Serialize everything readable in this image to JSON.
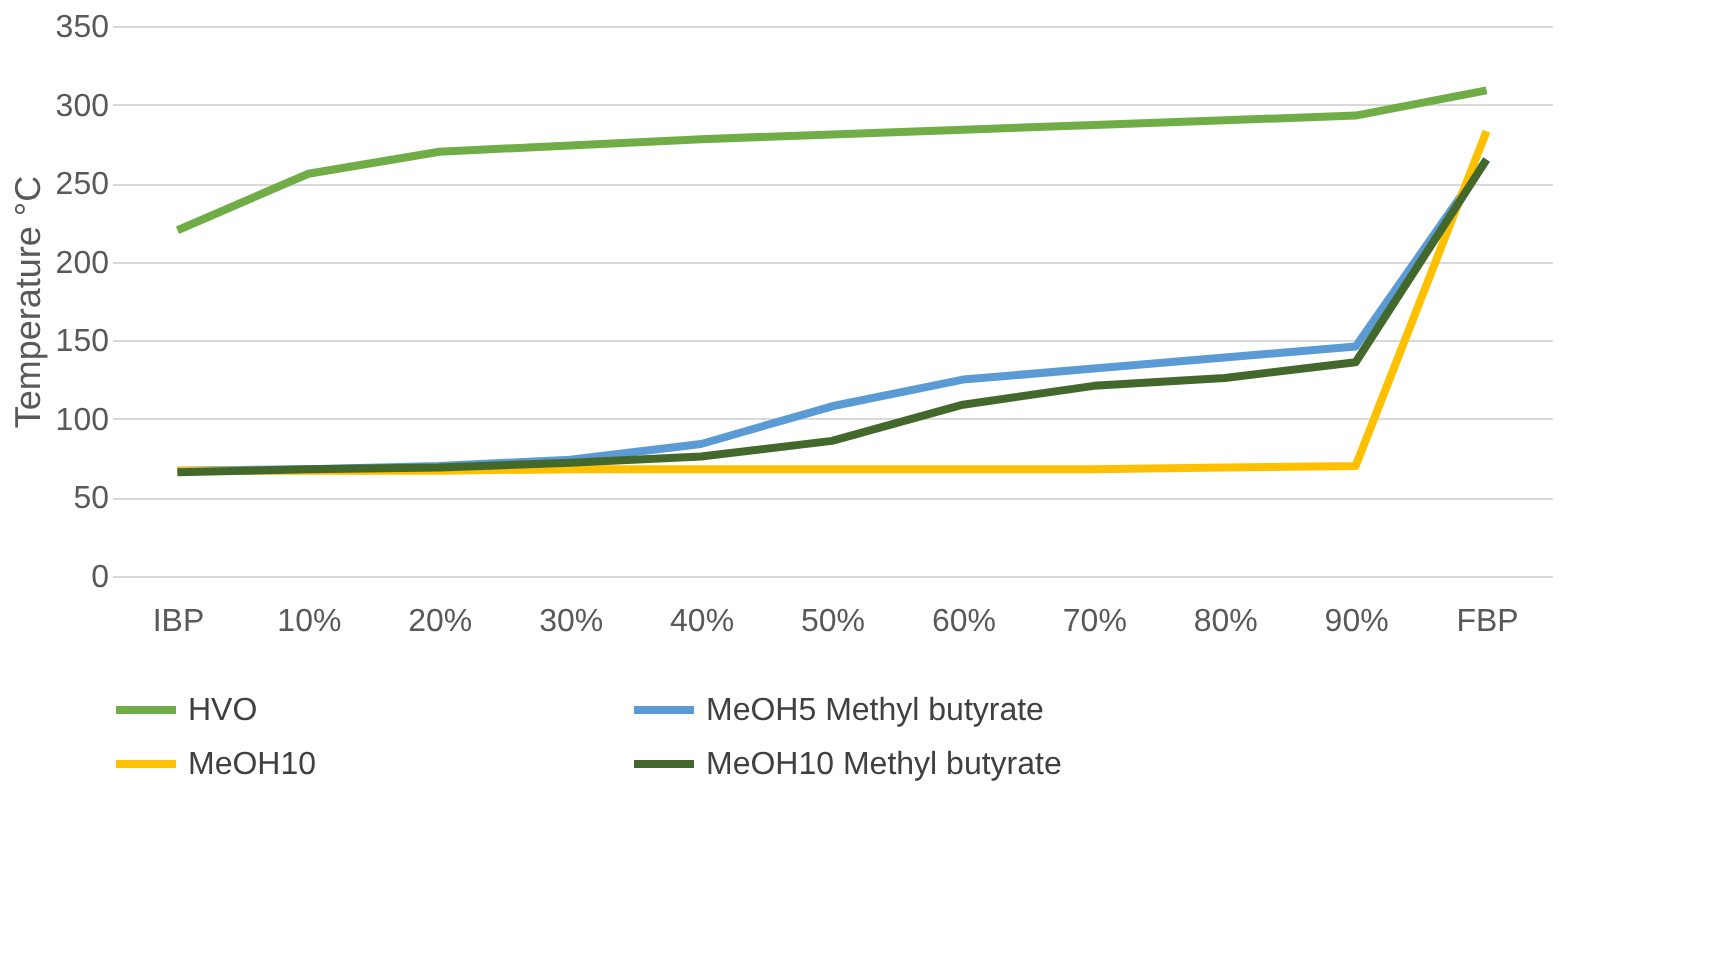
{
  "chart_data": {
    "type": "line",
    "ylabel": "Temperature °C",
    "categories": [
      "IBP",
      "10%",
      "20%",
      "30%",
      "40%",
      "50%",
      "60%",
      "70%",
      "80%",
      "90%",
      "FBP"
    ],
    "series": [
      {
        "name": "HVO",
        "color": "#70ad47",
        "values": [
          220,
          256,
          270,
          274,
          278,
          281,
          284,
          287,
          290,
          293,
          309
        ]
      },
      {
        "name": "MeOH5 Methyl butyrate",
        "color": "#5b9bd5",
        "values": [
          67,
          68,
          70,
          74,
          84,
          108,
          125,
          132,
          139,
          146,
          265
        ]
      },
      {
        "name": "MeOH10",
        "color": "#ffc000",
        "values": [
          67,
          67,
          67,
          68,
          68,
          68,
          68,
          68,
          69,
          70,
          283
        ]
      },
      {
        "name": "MeOH10 Methyl butyrate",
        "color": "#43682b",
        "values": [
          66,
          68,
          69,
          72,
          76,
          86,
          109,
          121,
          126,
          136,
          265
        ]
      }
    ],
    "ylim": [
      0,
      350
    ],
    "yticks": [
      0,
      50,
      100,
      150,
      200,
      250,
      300,
      350
    ],
    "grid": "y",
    "legend": "bottom",
    "marker": "none",
    "line_style": "solid"
  }
}
